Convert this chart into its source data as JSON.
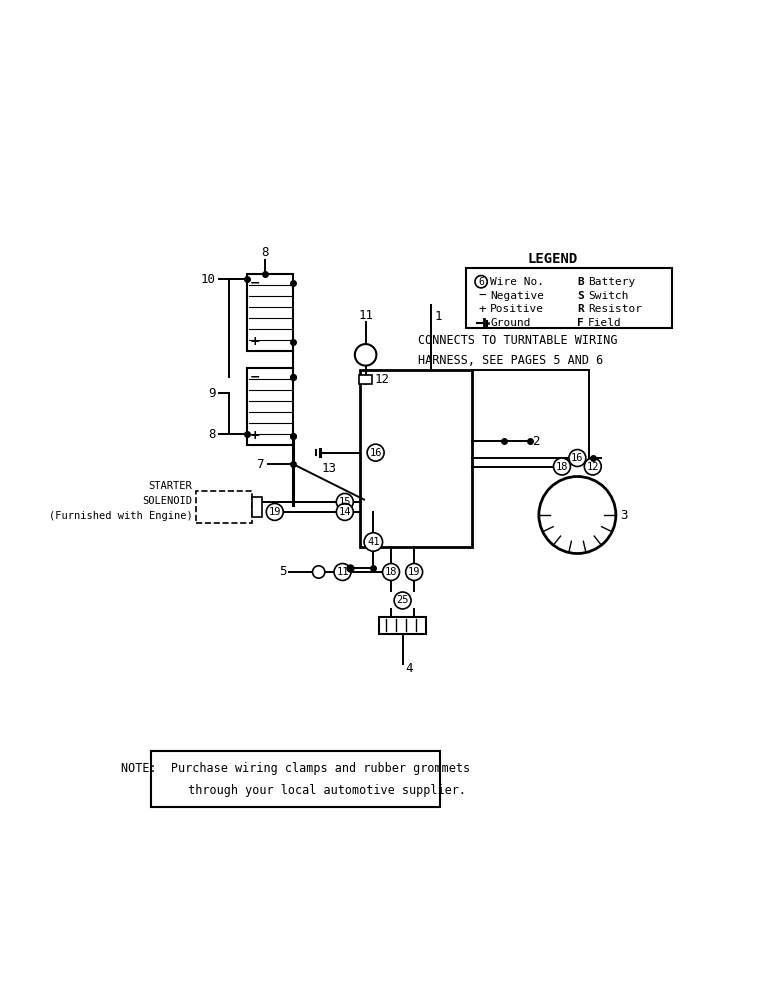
{
  "background_color": "#ffffff",
  "legend_title": "LEGEND",
  "note_text": "NOTE:  Purchase wiring clamps and rubber grommets\n         through your local automotive supplier.",
  "connects_text": "CONNECTS TO TURNTABLE WIRING\nHARNESS, SEE PAGES 5 AND 6",
  "starter_label": "STARTER\nSOLENOID\n(Furnished with Engine)",
  "lc": "black",
  "lw": 1.4
}
